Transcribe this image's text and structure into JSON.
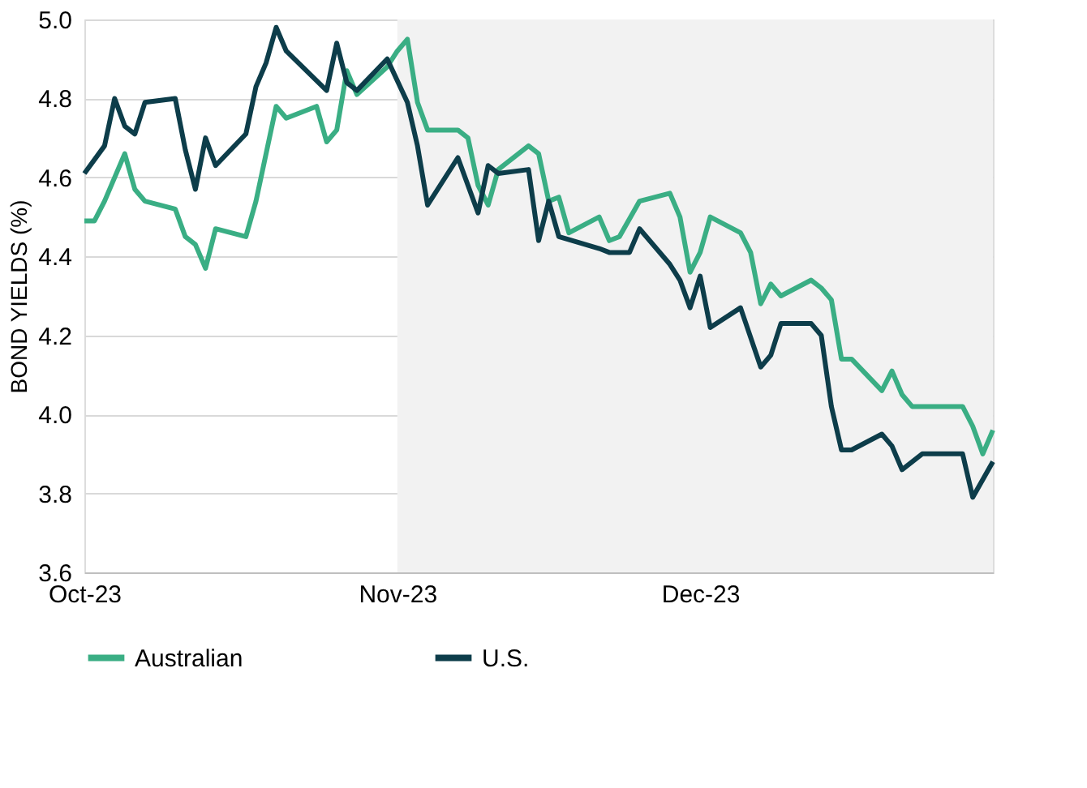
{
  "chart_data": {
    "type": "line",
    "ylabel": "BOND YIELDS (%)",
    "xlim": [
      "2023-10-01",
      "2023-12-30"
    ],
    "xticks": [
      {
        "value": "2023-10-01",
        "label": "Oct-23"
      },
      {
        "value": "2023-11-01",
        "label": "Nov-23"
      },
      {
        "value": "2023-12-01",
        "label": "Dec-23"
      }
    ],
    "ylim": [
      3.6,
      5.0
    ],
    "yticks": [
      3.6,
      3.8,
      {
        "value": 4.0,
        "label": "4.0"
      },
      4.2,
      4.4,
      4.6,
      4.8,
      {
        "value": 5.0,
        "label": "5.0"
      }
    ],
    "grid": "y",
    "legend": "bottom",
    "marker": "none",
    "line_style": "solid",
    "bands": [
      {
        "axis": "x",
        "from": "2023-11-01",
        "to": "2023-12-30",
        "color": "#f2f2f2"
      }
    ],
    "series": [
      {
        "name": "Australian",
        "color": "#3aae84",
        "x": [
          "2023-10-01",
          "2023-10-02",
          "2023-10-03",
          "2023-10-05",
          "2023-10-06",
          "2023-10-07",
          "2023-10-10",
          "2023-10-11",
          "2023-10-12",
          "2023-10-13",
          "2023-10-14",
          "2023-10-17",
          "2023-10-18",
          "2023-10-20",
          "2023-10-21",
          "2023-10-24",
          "2023-10-25",
          "2023-10-26",
          "2023-10-27",
          "2023-10-28",
          "2023-10-31",
          "2023-11-01",
          "2023-11-02",
          "2023-11-03",
          "2023-11-04",
          "2023-11-07",
          "2023-11-08",
          "2023-11-09",
          "2023-11-10",
          "2023-11-11",
          "2023-11-14",
          "2023-11-15",
          "2023-11-16",
          "2023-11-17",
          "2023-11-18",
          "2023-11-21",
          "2023-11-22",
          "2023-11-23",
          "2023-11-25",
          "2023-11-28",
          "2023-11-29",
          "2023-11-30",
          "2023-12-01",
          "2023-12-02",
          "2023-12-05",
          "2023-12-06",
          "2023-12-07",
          "2023-12-08",
          "2023-12-09",
          "2023-12-12",
          "2023-12-13",
          "2023-12-14",
          "2023-12-15",
          "2023-12-16",
          "2023-12-19",
          "2023-12-20",
          "2023-12-21",
          "2023-12-22",
          "2023-12-23",
          "2023-12-27",
          "2023-12-28",
          "2023-12-29",
          "2023-12-30"
        ],
        "values": [
          4.49,
          4.49,
          4.54,
          4.66,
          4.57,
          4.54,
          4.52,
          4.45,
          4.43,
          4.37,
          4.47,
          4.45,
          4.54,
          4.78,
          4.75,
          4.78,
          4.69,
          4.72,
          4.87,
          4.81,
          4.88,
          4.92,
          4.95,
          4.79,
          4.72,
          4.72,
          4.7,
          4.58,
          4.53,
          4.62,
          4.68,
          4.66,
          4.54,
          4.55,
          4.46,
          4.5,
          4.44,
          4.45,
          4.54,
          4.56,
          4.5,
          4.36,
          4.41,
          4.5,
          4.46,
          4.41,
          4.28,
          4.33,
          4.3,
          4.34,
          4.32,
          4.29,
          4.14,
          4.14,
          4.06,
          4.11,
          4.05,
          4.02,
          4.02,
          4.02,
          3.97,
          3.9,
          3.96
        ]
      },
      {
        "name": "U.S.",
        "color": "#0d3d4a",
        "x": [
          "2023-10-01",
          "2023-10-03",
          "2023-10-04",
          "2023-10-05",
          "2023-10-06",
          "2023-10-07",
          "2023-10-10",
          "2023-10-11",
          "2023-10-12",
          "2023-10-13",
          "2023-10-14",
          "2023-10-17",
          "2023-10-18",
          "2023-10-19",
          "2023-10-20",
          "2023-10-21",
          "2023-10-25",
          "2023-10-26",
          "2023-10-27",
          "2023-10-28",
          "2023-10-31",
          "2023-11-02",
          "2023-11-03",
          "2023-11-04",
          "2023-11-07",
          "2023-11-09",
          "2023-11-10",
          "2023-11-11",
          "2023-11-14",
          "2023-11-15",
          "2023-11-16",
          "2023-11-17",
          "2023-11-21",
          "2023-11-22",
          "2023-11-24",
          "2023-11-25",
          "2023-11-28",
          "2023-11-29",
          "2023-11-30",
          "2023-12-01",
          "2023-12-02",
          "2023-12-05",
          "2023-12-07",
          "2023-12-08",
          "2023-12-09",
          "2023-12-12",
          "2023-12-13",
          "2023-12-14",
          "2023-12-15",
          "2023-12-16",
          "2023-12-19",
          "2023-12-20",
          "2023-12-21",
          "2023-12-22",
          "2023-12-23",
          "2023-12-26",
          "2023-12-27",
          "2023-12-28",
          "2023-12-30"
        ],
        "values": [
          4.61,
          4.68,
          4.8,
          4.73,
          4.71,
          4.79,
          4.8,
          4.67,
          4.57,
          4.7,
          4.63,
          4.71,
          4.83,
          4.89,
          4.98,
          4.92,
          4.82,
          4.94,
          4.84,
          4.82,
          4.9,
          4.79,
          4.68,
          4.53,
          4.65,
          4.51,
          4.63,
          4.61,
          4.62,
          4.44,
          4.54,
          4.45,
          4.42,
          4.41,
          4.41,
          4.47,
          4.38,
          4.34,
          4.27,
          4.35,
          4.22,
          4.27,
          4.12,
          4.15,
          4.23,
          4.23,
          4.2,
          4.02,
          3.91,
          3.91,
          3.95,
          3.92,
          3.86,
          3.88,
          3.9,
          3.9,
          3.9,
          3.79,
          3.88
        ]
      }
    ]
  }
}
